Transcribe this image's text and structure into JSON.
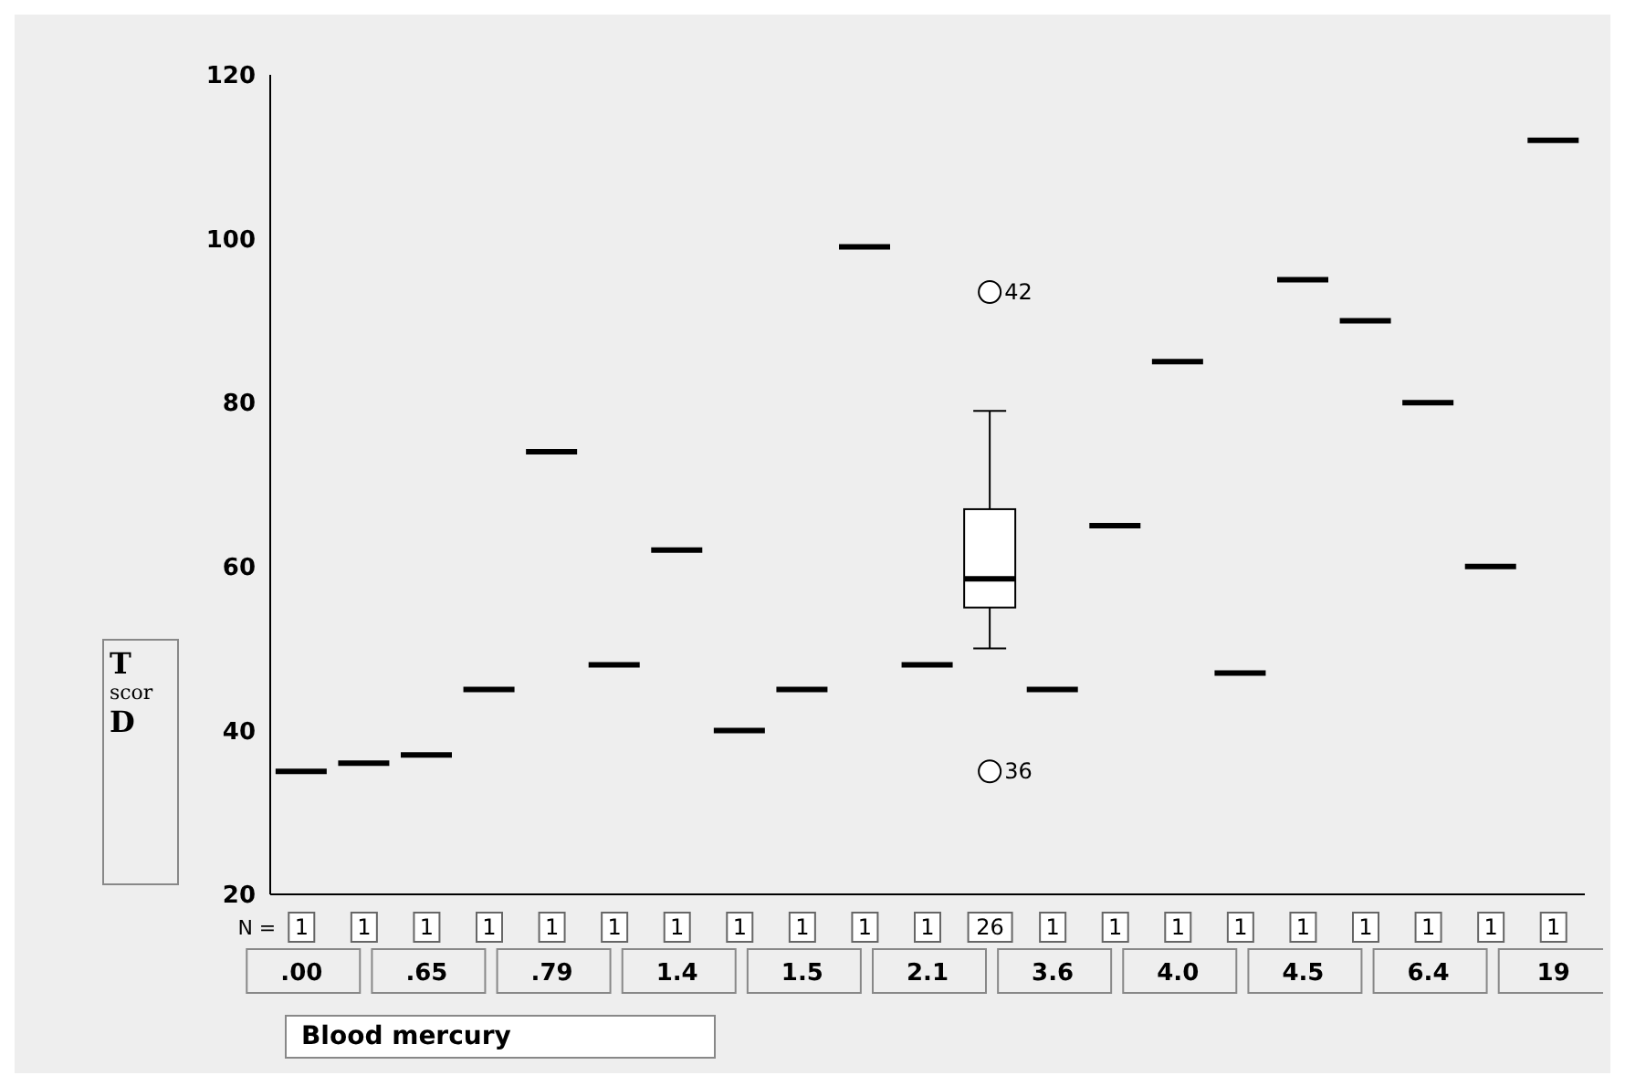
{
  "chart_data": {
    "type": "box",
    "xlabel": "Blood mercury",
    "ylabel": "T scor D",
    "categories": [
      ".00",
      null,
      ".65",
      null,
      ".79",
      null,
      "1.4",
      null,
      "1.5",
      null,
      "2.1",
      null,
      "3.6",
      null,
      "4.0",
      null,
      "4.5",
      null,
      "6.4",
      null,
      "19"
    ],
    "boxes": [
      {
        "low": 35,
        "q1": 35,
        "median": 35,
        "q3": 35,
        "high": 35
      },
      {
        "low": 36,
        "q1": 36,
        "median": 36,
        "q3": 36,
        "high": 36
      },
      {
        "low": 37,
        "q1": 37,
        "median": 37,
        "q3": 37,
        "high": 37
      },
      {
        "low": 45,
        "q1": 45,
        "median": 45,
        "q3": 45,
        "high": 45
      },
      {
        "low": 74,
        "q1": 74,
        "median": 74,
        "q3": 74,
        "high": 74
      },
      {
        "low": 48,
        "q1": 48,
        "median": 48,
        "q3": 48,
        "high": 48
      },
      {
        "low": 62,
        "q1": 62,
        "median": 62,
        "q3": 62,
        "high": 62
      },
      {
        "low": 40,
        "q1": 40,
        "median": 40,
        "q3": 40,
        "high": 40
      },
      {
        "low": 45,
        "q1": 45,
        "median": 45,
        "q3": 45,
        "high": 45
      },
      {
        "low": 99,
        "q1": 99,
        "median": 99,
        "q3": 99,
        "high": 99
      },
      {
        "low": 48,
        "q1": 48,
        "median": 48,
        "q3": 48,
        "high": 48
      },
      {
        "low": 50,
        "q1": 55,
        "median": 58.5,
        "q3": 67,
        "high": 79,
        "outliers": [
          93.5,
          35
        ]
      },
      {
        "low": 45,
        "q1": 45,
        "median": 45,
        "q3": 45,
        "high": 45
      },
      {
        "low": 65,
        "q1": 65,
        "median": 65,
        "q3": 65,
        "high": 65
      },
      {
        "low": 85,
        "q1": 85,
        "median": 85,
        "q3": 85,
        "high": 85
      },
      {
        "low": 47,
        "q1": 47,
        "median": 47,
        "q3": 47,
        "high": 47
      },
      {
        "low": 95,
        "q1": 95,
        "median": 95,
        "q3": 95,
        "high": 95
      },
      {
        "low": 90,
        "q1": 90,
        "median": 90,
        "q3": 90,
        "high": 90
      },
      {
        "low": 80,
        "q1": 80,
        "median": 80,
        "q3": 80,
        "high": 80
      },
      {
        "low": 60,
        "q1": 60,
        "median": 60,
        "q3": 60,
        "high": 60
      },
      {
        "low": 112,
        "q1": 112,
        "median": 112,
        "q3": 112,
        "high": 112
      }
    ],
    "ylim": [
      20,
      120
    ],
    "yticks": [
      20,
      40,
      60,
      80,
      100,
      120
    ],
    "annotations": [
      "N =",
      "1",
      "1",
      "1",
      "1",
      "1",
      "1",
      "1",
      "1",
      "1",
      "1",
      "1",
      "26",
      "1",
      "1",
      "1",
      "1",
      "1",
      "1",
      "1",
      "1",
      "1",
      "42",
      "36"
    ]
  }
}
